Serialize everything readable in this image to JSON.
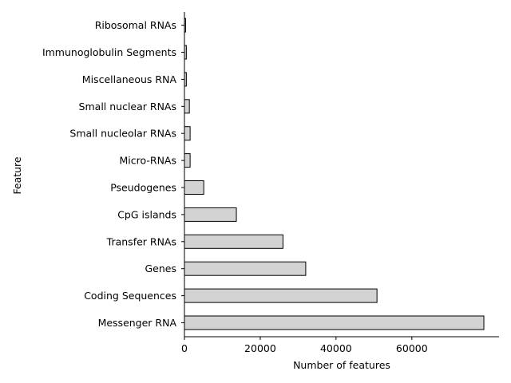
{
  "chart_data": {
    "type": "bar",
    "orientation": "horizontal",
    "title": "",
    "xlabel": "Number of features",
    "ylabel": "Feature",
    "categories": [
      "Messenger RNA",
      "Coding Sequences",
      "Genes",
      "Transfer RNAs",
      "CpG islands",
      "Pseudogenes",
      "Micro-RNAs",
      "Small nucleolar RNAs",
      "Small nuclear RNAs",
      "Miscellaneous RNA",
      "Immunoglobulin Segments",
      "Ribosomal RNAs"
    ],
    "values": [
      79000,
      50800,
      32000,
      26000,
      13700,
      5100,
      1500,
      1500,
      1300,
      500,
      500,
      300
    ],
    "xlim": [
      0,
      83000
    ],
    "xticks": [
      0,
      20000,
      40000,
      60000
    ],
    "grid": false,
    "legend": "none",
    "bar_color": "#d3d3d3",
    "edge_color": "#000000"
  }
}
